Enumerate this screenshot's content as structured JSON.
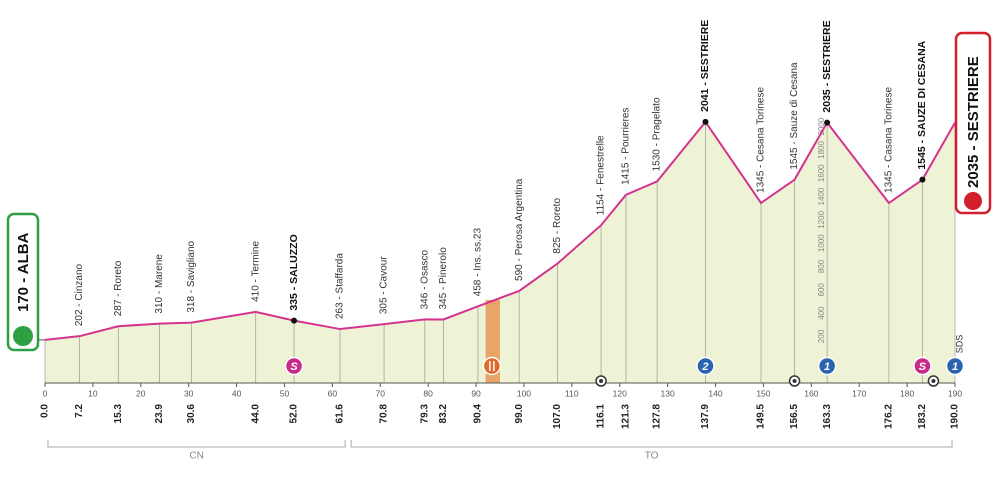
{
  "chart_data": {
    "type": "profile",
    "x": [
      {
        "value": 0,
        "label": "0.0"
      },
      7.2,
      15.3,
      23.9,
      30.6,
      {
        "value": 44,
        "label": "44.0"
      },
      {
        "value": 52,
        "label": "52.0"
      },
      61.6,
      70.8,
      79.3,
      83.2,
      90.4,
      {
        "value": 99,
        "label": "99.0"
      },
      {
        "value": 107,
        "label": "107.0"
      },
      116.1,
      121.3,
      127.8,
      137.9,
      149.5,
      156.5,
      163.3,
      176.2,
      183.2,
      {
        "value": 190,
        "label": "190.0"
      }
    ],
    "values": [
      170,
      202,
      287,
      310,
      318,
      410,
      335,
      263,
      305,
      346,
      345,
      458,
      590,
      825,
      1154,
      1415,
      1530,
      2041,
      1345,
      1545,
      2035,
      1345,
      1545,
      2035
    ],
    "labels": [
      "170 - ALBA",
      "202 - Cinzano",
      "287 - Roreto",
      "310 - Marene",
      "318 - Savigliano",
      "410 - Termine",
      "335 - SALUZZO",
      "263 - Staffarda",
      "305 - Cavour",
      "346 - Osasco",
      "345 - Pinerolo",
      "458 - Ins. ss.23",
      "590 - Perosa Argentina",
      "825 - Roreto",
      "1154 - Fenestrelle",
      "1415 - Pourrieres",
      "1530 - Pragelato",
      "2041 - SESTRIERE",
      "1345 - Cesana Torinese",
      "1545 - Sauze di Cesana",
      "2035 - SESTRIERE",
      "1345 - Casana Torinese",
      "1545 - SAUZE DI CESANA",
      "2035 - SESTRIERE"
    ],
    "emphasis": [
      true,
      false,
      false,
      false,
      false,
      false,
      true,
      false,
      false,
      false,
      false,
      false,
      false,
      false,
      false,
      false,
      false,
      true,
      false,
      false,
      true,
      false,
      true,
      true
    ],
    "color": "#d4338f",
    "xlim": [
      0,
      190
    ],
    "xticks": [
      0,
      10,
      20,
      30,
      40,
      50,
      60,
      70,
      80,
      90,
      100,
      110,
      120,
      130,
      140,
      150,
      160,
      170,
      180,
      190
    ],
    "ylim": [
      -200,
      2100
    ],
    "yticks": [
      200,
      400,
      600,
      800,
      1000,
      1200,
      1400,
      1600,
      1800,
      2000
    ],
    "markers": [
      {
        "km": 52,
        "kind": "sprint",
        "label": "S"
      },
      {
        "km": 93.3,
        "kind": "feed"
      },
      {
        "km": 137.9,
        "kind": "climb",
        "label": "2"
      },
      {
        "km": 163.3,
        "kind": "climb",
        "label": "1"
      },
      {
        "km": 183.2,
        "kind": "sprint",
        "label": "S"
      },
      {
        "km": 190,
        "kind": "climb",
        "label": "1"
      },
      {
        "km": 116.1,
        "kind": "tunnel"
      },
      {
        "km": 156.5,
        "kind": "tunnel"
      },
      {
        "km": 185.5,
        "kind": "tunnel"
      }
    ],
    "feed_zone": [
      92,
      95
    ],
    "regions": [
      {
        "label": "CN",
        "from": 0,
        "to": 63.3
      },
      {
        "label": "TO",
        "from": 63.3,
        "to": 190
      }
    ],
    "brand": "SDS"
  }
}
